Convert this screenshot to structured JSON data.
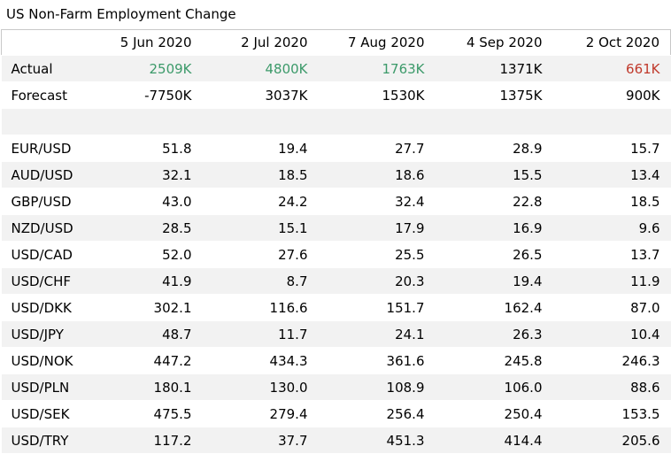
{
  "title": "US Non-Farm Employment Change",
  "columns": [
    "",
    "5 Jun 2020",
    "2 Jul 2020",
    "7 Aug 2020",
    "4 Sep 2020",
    "2 Oct 2020"
  ],
  "actual": {
    "label": "Actual",
    "values": [
      "2509K",
      "4800K",
      "1763K",
      "1371K",
      "661K"
    ],
    "tones": [
      "pos",
      "pos",
      "pos",
      "",
      "neg"
    ]
  },
  "forecast": {
    "label": "Forecast",
    "values": [
      "-7750K",
      "3037K",
      "1530K",
      "1375K",
      "900K"
    ]
  },
  "pairs": [
    {
      "label": "EUR/USD",
      "values": [
        "51.8",
        "19.4",
        "27.7",
        "28.9",
        "15.7"
      ]
    },
    {
      "label": "AUD/USD",
      "values": [
        "32.1",
        "18.5",
        "18.6",
        "15.5",
        "13.4"
      ]
    },
    {
      "label": "GBP/USD",
      "values": [
        "43.0",
        "24.2",
        "32.4",
        "22.8",
        "18.5"
      ]
    },
    {
      "label": "NZD/USD",
      "values": [
        "28.5",
        "15.1",
        "17.9",
        "16.9",
        "9.6"
      ]
    },
    {
      "label": "USD/CAD",
      "values": [
        "52.0",
        "27.6",
        "25.5",
        "26.5",
        "13.7"
      ]
    },
    {
      "label": "USD/CHF",
      "values": [
        "41.9",
        "8.7",
        "20.3",
        "19.4",
        "11.9"
      ]
    },
    {
      "label": "USD/DKK",
      "values": [
        "302.1",
        "116.6",
        "151.7",
        "162.4",
        "87.0"
      ]
    },
    {
      "label": "USD/JPY",
      "values": [
        "48.7",
        "11.7",
        "24.1",
        "26.3",
        "10.4"
      ]
    },
    {
      "label": "USD/NOK",
      "values": [
        "447.2",
        "434.3",
        "361.6",
        "245.8",
        "246.3"
      ]
    },
    {
      "label": "USD/PLN",
      "values": [
        "180.1",
        "130.0",
        "108.9",
        "106.0",
        "88.6"
      ]
    },
    {
      "label": "USD/SEK",
      "values": [
        "475.5",
        "279.4",
        "256.4",
        "250.4",
        "153.5"
      ]
    },
    {
      "label": "USD/TRY",
      "values": [
        "117.2",
        "37.7",
        "451.3",
        "414.4",
        "205.6"
      ]
    }
  ],
  "colors": {
    "positive": "#3c9a6a",
    "negative": "#c0392b",
    "row_shade": "#f2f2f2"
  }
}
